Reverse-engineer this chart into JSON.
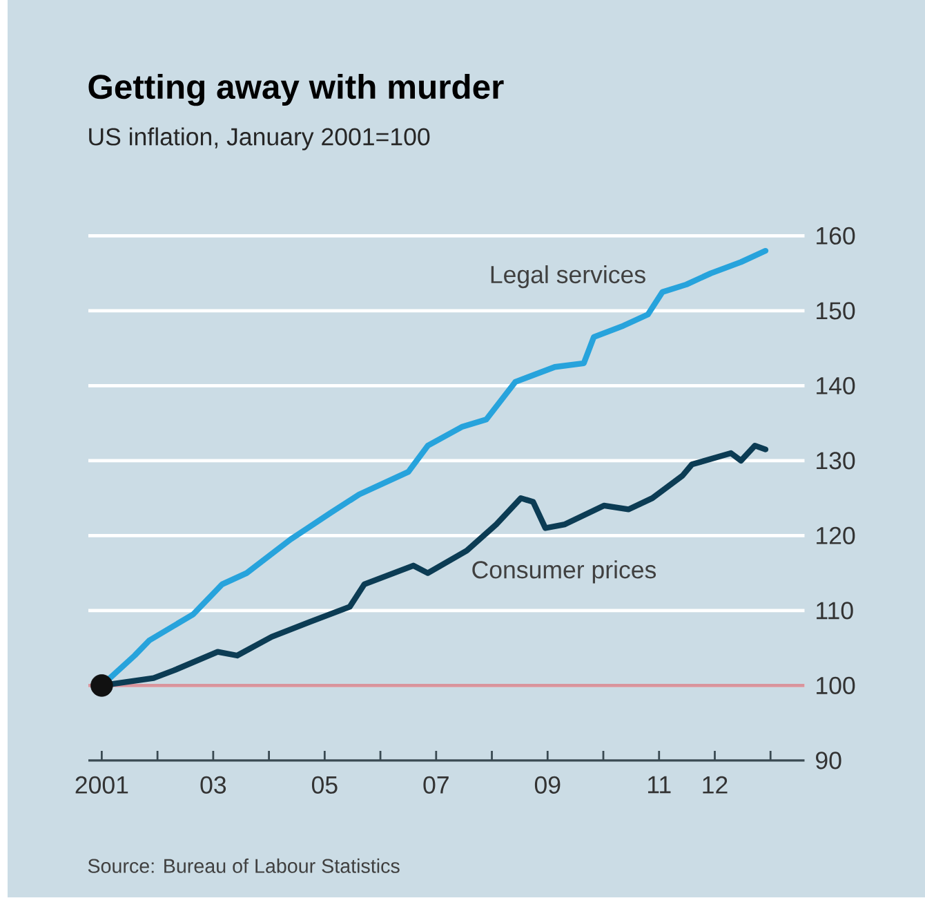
{
  "chart_data": {
    "type": "line",
    "title": "Getting away with murder",
    "subtitle": "US inflation, January 2001=100",
    "annotations": [
      "Source: Bureau of Labour Statistics"
    ],
    "xlim": [
      2000.76,
      2013.61
    ],
    "xticks": [
      {
        "value": 2001,
        "label": "2001"
      },
      {
        "value": 2002,
        "label": null
      },
      {
        "value": 2003,
        "label": "03"
      },
      {
        "value": 2004,
        "label": null
      },
      {
        "value": 2005,
        "label": "05"
      },
      {
        "value": 2006,
        "label": null
      },
      {
        "value": 2007,
        "label": "07"
      },
      {
        "value": 2008,
        "label": null
      },
      {
        "value": 2009,
        "label": "09"
      },
      {
        "value": 2010,
        "label": null
      },
      {
        "value": 2011,
        "label": "11"
      },
      {
        "value": 2012,
        "label": "12"
      },
      {
        "value": 2013,
        "label": null
      }
    ],
    "ylim": [
      90,
      160
    ],
    "yticks": [
      90,
      100,
      110,
      120,
      130,
      140,
      150,
      160
    ],
    "grid": "y",
    "line_style": "solid",
    "ref_lines": [
      {
        "axis": "y",
        "value": 100,
        "color": "#d9949c"
      }
    ],
    "series": [
      {
        "name": "Legal services",
        "color": "#27a3dc",
        "x": [
          2001,
          2001.59,
          2001.85,
          2002.64,
          2003.16,
          2003.6,
          2004.39,
          2005.1,
          2005.62,
          2006.5,
          2006.85,
          2007.46,
          2007.9,
          2008.42,
          2009.13,
          2009.65,
          2009.83,
          2010.36,
          2010.8,
          2011.06,
          2011.49,
          2011.93,
          2012.47,
          2012.91
        ],
        "values": [
          100,
          104,
          106,
          109.5,
          113.5,
          115,
          119.5,
          123,
          125.5,
          128.5,
          132,
          134.5,
          135.5,
          140.5,
          142.5,
          143,
          146.5,
          148,
          149.5,
          152.5,
          153.5,
          155,
          156.5,
          158
        ]
      },
      {
        "name": "Consumer prices",
        "color": "#0c3c54",
        "x": [
          2001,
          2001.93,
          2002.29,
          2003.08,
          2003.43,
          2004.05,
          2004.74,
          2005.45,
          2005.71,
          2006.59,
          2006.85,
          2007.55,
          2008.08,
          2008.52,
          2008.74,
          2008.96,
          2009.31,
          2010.01,
          2010.45,
          2010.88,
          2011.42,
          2011.59,
          2012.29,
          2012.47,
          2012.72,
          2012.91
        ],
        "values": [
          100,
          101,
          102,
          104.5,
          104,
          106.5,
          108.5,
          110.5,
          113.5,
          116,
          115,
          118,
          121.5,
          125,
          124.5,
          121,
          121.5,
          124,
          123.5,
          125,
          128,
          129.5,
          131,
          130,
          132,
          131.5
        ]
      },
      {
        "type": "scatter",
        "marker": "circle",
        "color": "#111111",
        "x": [
          2001
        ],
        "values": [
          100
        ]
      }
    ]
  }
}
